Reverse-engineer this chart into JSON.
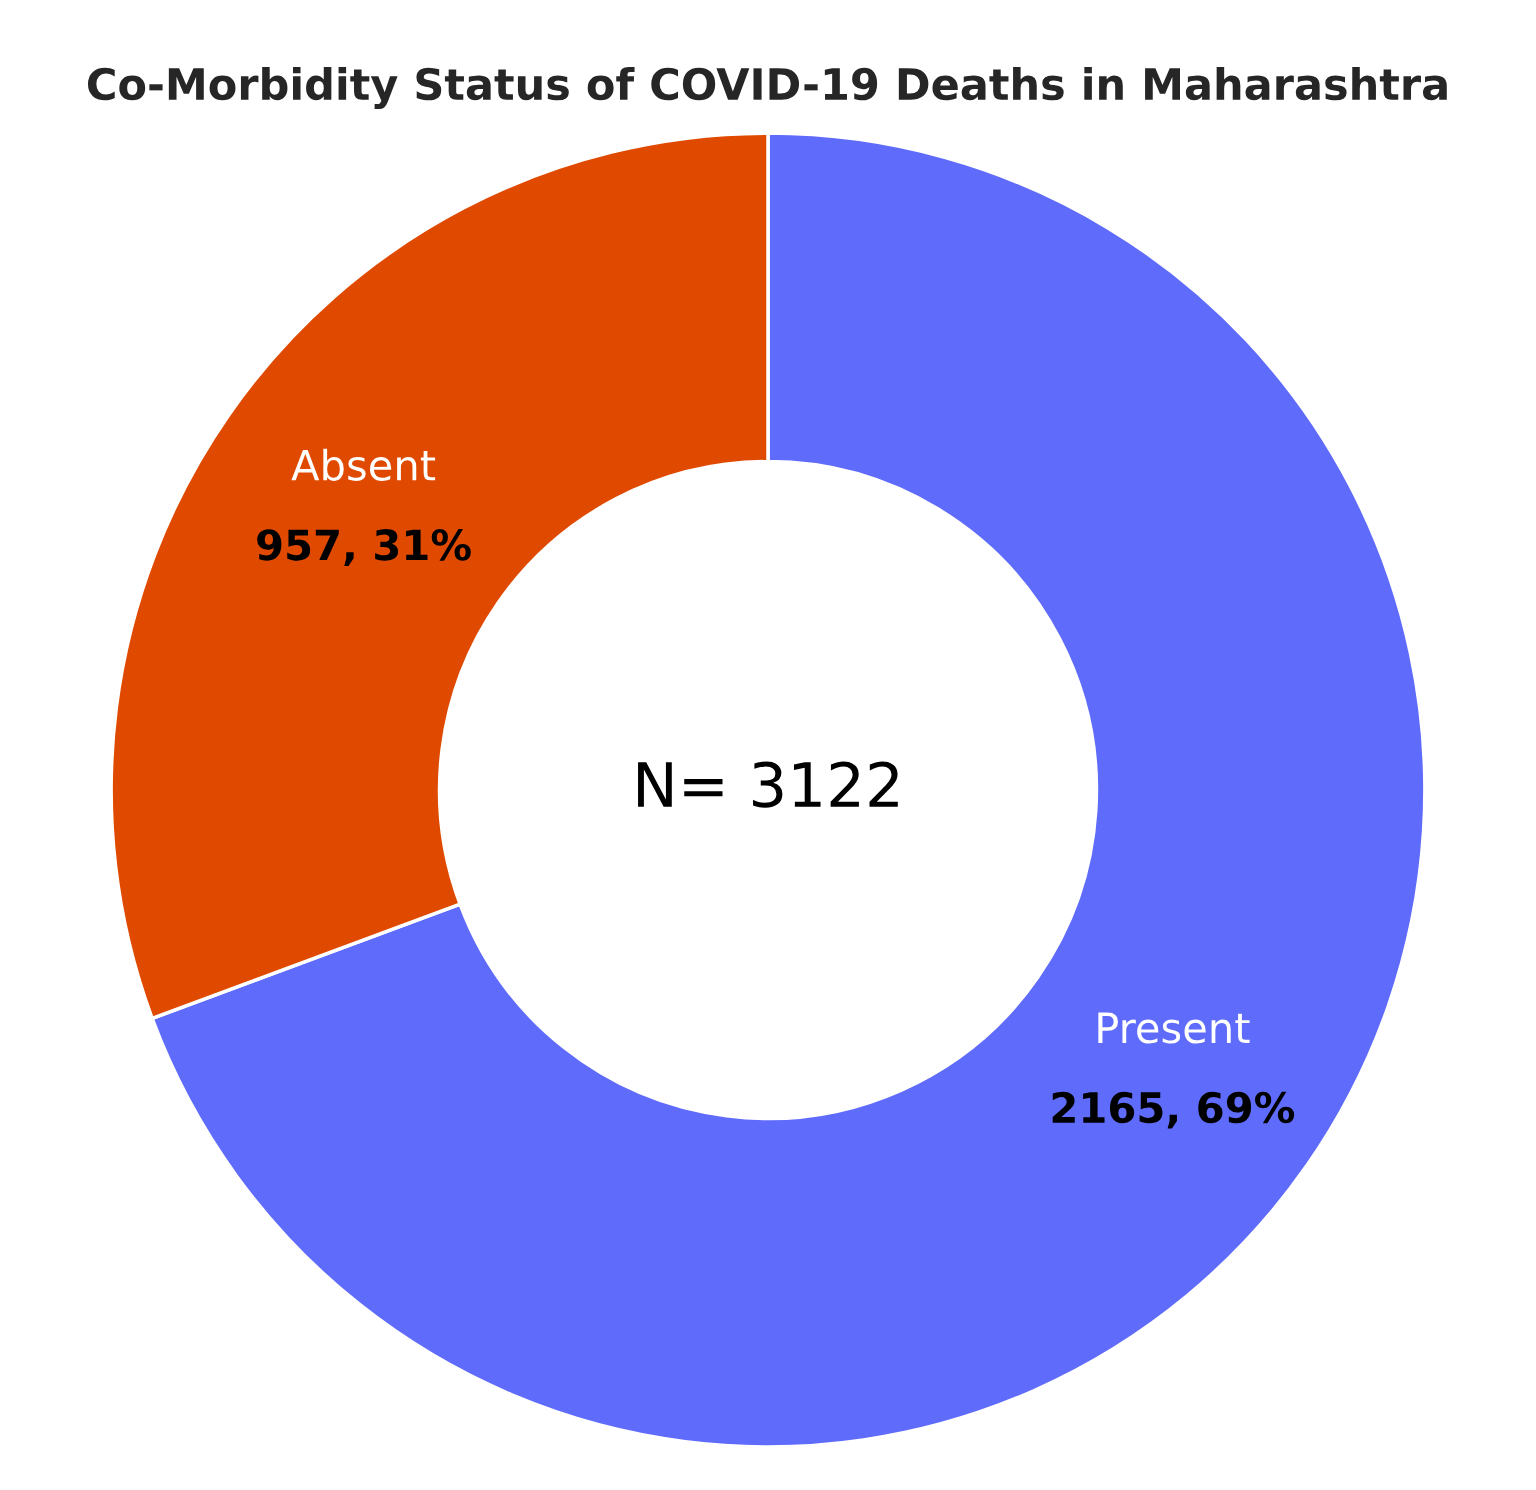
{
  "chart_data": {
    "type": "donut",
    "title": "Co-Morbidity Status of COVID-19 Deaths in Maharashtra",
    "categories": [
      "Present",
      "Absent"
    ],
    "values": [
      2165,
      957
    ],
    "colors": [
      "#5f6bfb",
      "#e04a00"
    ],
    "value_labels": [
      "2165, 69%",
      "957, 31%"
    ],
    "annotations": [
      "N= 3122"
    ]
  }
}
